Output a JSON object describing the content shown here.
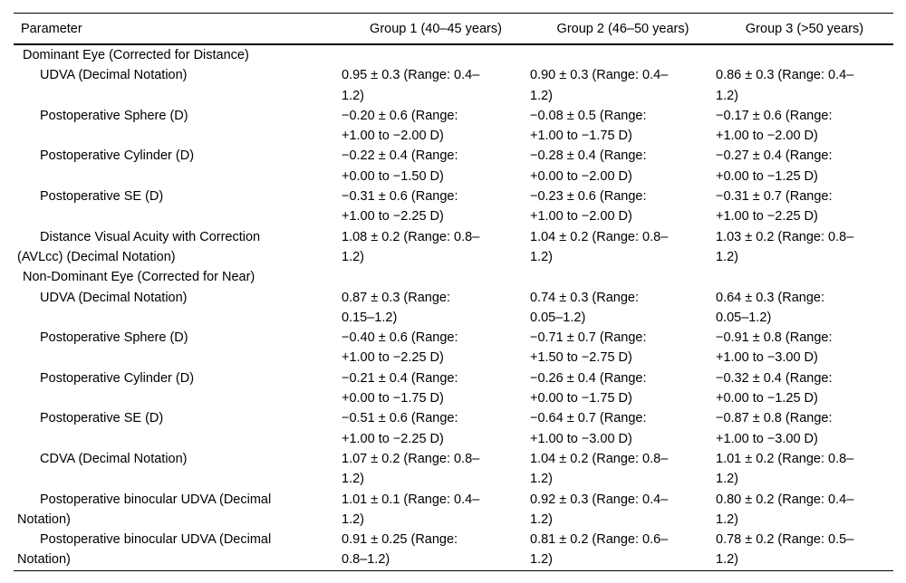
{
  "table": {
    "headers": {
      "parameter": "Parameter",
      "group1": "Group 1 (40–45 years)",
      "group2": "Group 2 (46–50 years)",
      "group3": "Group 3 (>50 years)"
    },
    "rows": [
      {
        "type": "section",
        "label": "Dominant Eye (Corrected for Distance)"
      },
      {
        "type": "param",
        "label": "UDVA (Decimal Notation)",
        "g1": "0.95 ± 0.3 (Range: 0.4–\n1.2)",
        "g2": "0.90 ± 0.3 (Range: 0.4–\n1.2)",
        "g3": "0.86 ± 0.3 (Range: 0.4–\n1.2)"
      },
      {
        "type": "param",
        "label": "Postoperative Sphere (D)",
        "g1": "−0.20 ± 0.6 (Range:\n+1.00 to −2.00 D)",
        "g2": "−0.08 ± 0.5 (Range:\n+1.00 to −1.75 D)",
        "g3": "−0.17 ± 0.6 (Range:\n+1.00 to −2.00 D)"
      },
      {
        "type": "param",
        "label": "Postoperative Cylinder (D)",
        "g1": "−0.22 ± 0.4 (Range:\n+0.00 to −1.50 D)",
        "g2": "−0.28 ± 0.4 (Range:\n+0.00 to −2.00 D)",
        "g3": "−0.27 ± 0.4 (Range:\n+0.00 to −1.25 D)"
      },
      {
        "type": "param",
        "label": "Postoperative SE (D)",
        "g1": "−0.31 ± 0.6 (Range:\n+1.00 to −2.25 D)",
        "g2": "−0.23 ± 0.6 (Range:\n+1.00 to −2.00 D)",
        "g3": "−0.31 ± 0.7 (Range:\n+1.00 to −2.25 D)"
      },
      {
        "type": "param",
        "label": "Distance Visual Acuity with Correction\n(AVLcc) (Decimal Notation)",
        "g1": "1.08 ± 0.2 (Range: 0.8–\n1.2)",
        "g2": "1.04 ± 0.2 (Range: 0.8–\n1.2)",
        "g3": "1.03 ± 0.2 (Range: 0.8–\n1.2)"
      },
      {
        "type": "section",
        "label": "Non-Dominant Eye (Corrected for Near)"
      },
      {
        "type": "param",
        "label": "UDVA (Decimal Notation)",
        "g1": "0.87 ± 0.3 (Range:\n0.15–1.2)",
        "g2": "0.74 ± 0.3 (Range:\n0.05–1.2)",
        "g3": "0.64 ± 0.3 (Range:\n0.05–1.2)"
      },
      {
        "type": "param",
        "label": "Postoperative Sphere (D)",
        "g1": "−0.40 ± 0.6 (Range:\n+1.00 to −2.25 D)",
        "g2": "−0.71 ± 0.7 (Range:\n+1.50 to −2.75 D)",
        "g3": "−0.91 ± 0.8 (Range:\n+1.00 to −3.00 D)"
      },
      {
        "type": "param",
        "label": "Postoperative Cylinder (D)",
        "g1": "−0.21 ± 0.4 (Range:\n+0.00 to −1.75 D)",
        "g2": "−0.26 ± 0.4 (Range:\n+0.00 to −1.75 D)",
        "g3": "−0.32 ± 0.4 (Range:\n+0.00 to −1.25 D)"
      },
      {
        "type": "param",
        "label": "Postoperative SE (D)",
        "g1": "−0.51 ± 0.6 (Range:\n+1.00 to −2.25 D)",
        "g2": "−0.64 ± 0.7 (Range:\n+1.00 to −3.00 D)",
        "g3": "−0.87 ± 0.8 (Range:\n+1.00 to −3.00 D)"
      },
      {
        "type": "param",
        "label": "CDVA (Decimal Notation)",
        "g1": "1.07 ± 0.2 (Range: 0.8–\n1.2)",
        "g2": "1.04 ± 0.2 (Range: 0.8–\n1.2)",
        "g3": "1.01 ± 0.2 (Range: 0.8–\n1.2)"
      },
      {
        "type": "param",
        "label": "Postoperative binocular UDVA (Decimal\nNotation)",
        "g1": "1.01 ± 0.1 (Range: 0.4–\n1.2)",
        "g2": "0.92 ± 0.3 (Range: 0.4–\n1.2)",
        "g3": "0.80 ± 0.2 (Range: 0.4–\n1.2)"
      },
      {
        "type": "param",
        "label": "Postoperative binocular UDVA (Decimal\nNotation)",
        "g1": "0.91 ± 0.25 (Range:\n0.8–1.2)",
        "g2": "0.81 ± 0.2 (Range: 0.6–\n1.2)",
        "g3": "0.78 ± 0.2 (Range: 0.5–\n1.2)"
      }
    ]
  }
}
